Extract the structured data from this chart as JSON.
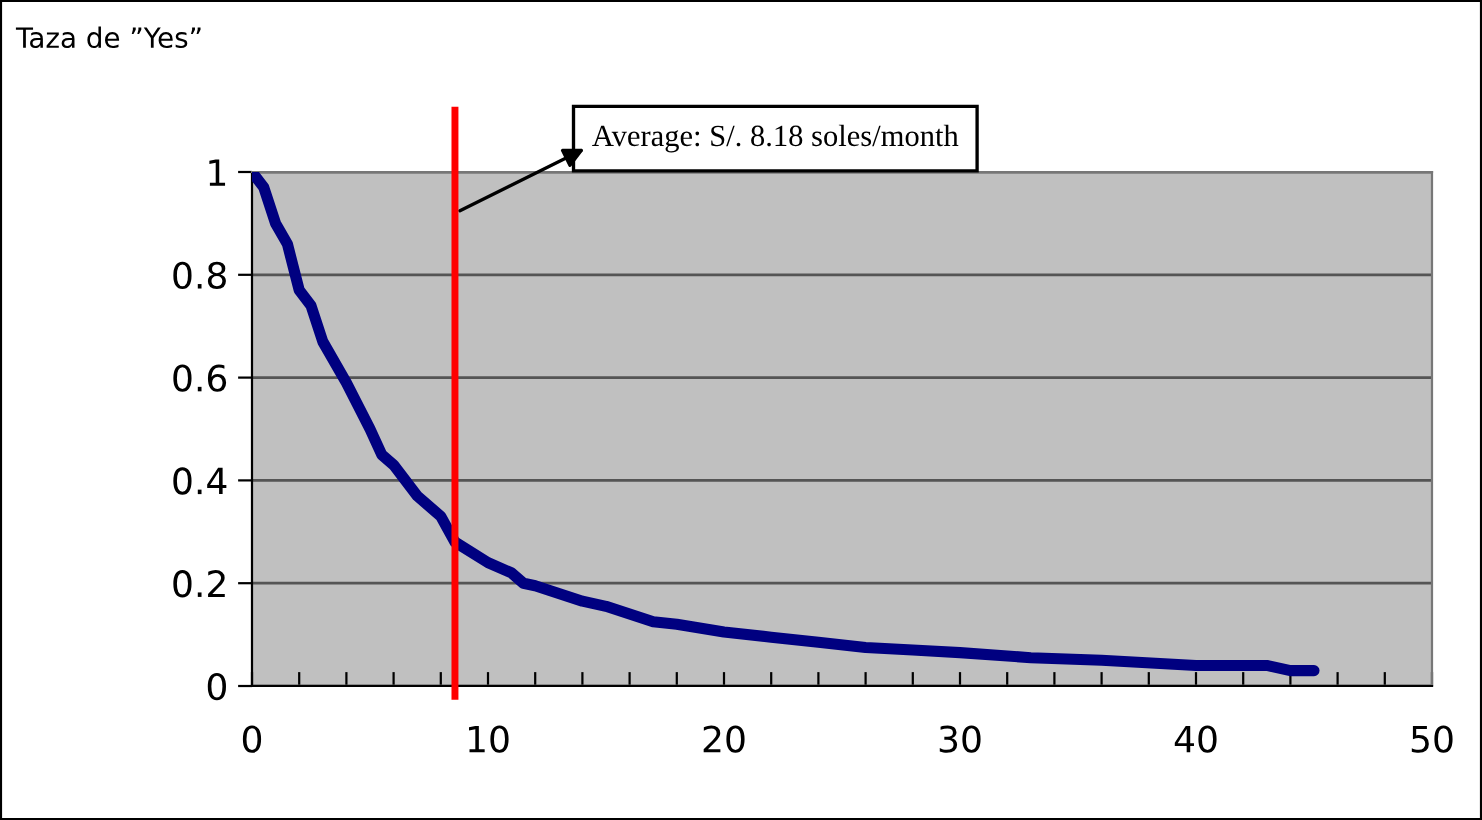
{
  "chart_data": {
    "type": "line",
    "ylabel": "Taza de ”Yes”",
    "x": [
      0,
      0.5,
      1,
      1.5,
      2,
      2.5,
      3,
      4,
      5,
      5.5,
      6,
      7,
      8,
      8.6,
      10,
      11,
      11.5,
      12,
      14,
      15,
      16,
      17,
      18,
      20,
      22,
      24,
      26,
      28,
      30,
      33,
      36,
      40,
      43,
      44,
      45
    ],
    "series": [
      {
        "color": "#000080",
        "values": [
          1.0,
          0.97,
          0.9,
          0.86,
          0.77,
          0.74,
          0.67,
          0.59,
          0.5,
          0.45,
          0.43,
          0.37,
          0.33,
          0.28,
          0.24,
          0.22,
          0.2,
          0.195,
          0.165,
          0.155,
          0.14,
          0.125,
          0.12,
          0.105,
          0.095,
          0.085,
          0.075,
          0.07,
          0.065,
          0.055,
          0.05,
          0.04,
          0.04,
          0.03,
          0.03
        ]
      }
    ],
    "xlim": [
      0,
      50
    ],
    "ylim": [
      0,
      1
    ],
    "xticks": [
      0,
      {
        "value": 2,
        "label": null
      },
      {
        "value": 4,
        "label": null
      },
      {
        "value": 6,
        "label": null
      },
      {
        "value": 8,
        "label": null
      },
      10,
      {
        "value": 12,
        "label": null
      },
      {
        "value": 14,
        "label": null
      },
      {
        "value": 16,
        "label": null
      },
      {
        "value": 18,
        "label": null
      },
      20,
      {
        "value": 22,
        "label": null
      },
      {
        "value": 24,
        "label": null
      },
      {
        "value": 26,
        "label": null
      },
      {
        "value": 28,
        "label": null
      },
      30,
      {
        "value": 32,
        "label": null
      },
      {
        "value": 34,
        "label": null
      },
      {
        "value": 36,
        "label": null
      },
      {
        "value": 38,
        "label": null
      },
      40,
      {
        "value": 42,
        "label": null
      },
      {
        "value": 44,
        "label": null
      },
      {
        "value": 46,
        "label": null
      },
      {
        "value": 48,
        "label": null
      },
      50
    ],
    "yticks": [
      0,
      0.2,
      0.4,
      0.6,
      0.8,
      1
    ],
    "grid": "y",
    "line_style": "solid",
    "marker": "none",
    "legend": false,
    "ref_lines": [
      {
        "axis": "x",
        "value": 8.6,
        "color": "#ff0000"
      }
    ],
    "annotations": [
      {
        "text": "Average: S/. 8.18 soles/month",
        "x": 8.6,
        "y": 0.92
      }
    ]
  }
}
